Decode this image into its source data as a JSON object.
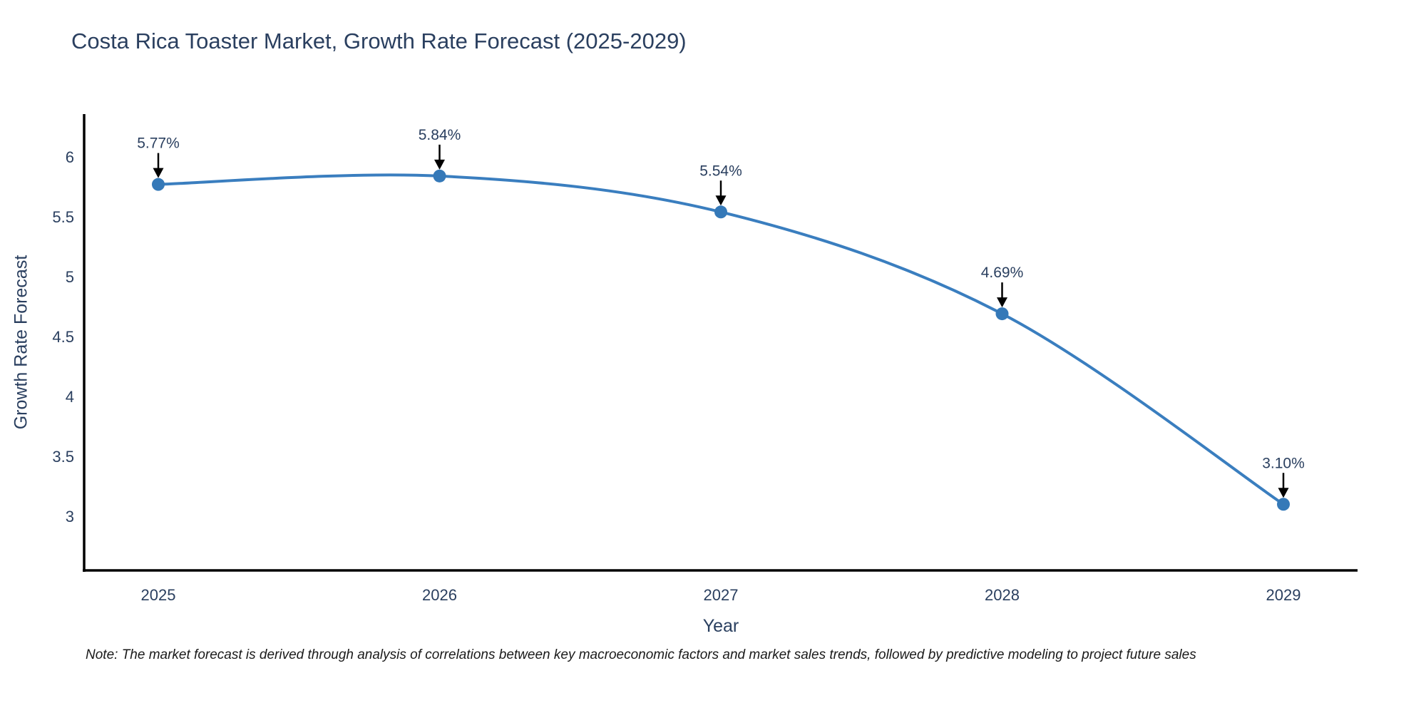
{
  "title": "Costa Rica Toaster Market, Growth Rate Forecast (2025-2029)",
  "chart_data": {
    "type": "line",
    "title": "Costa Rica Toaster Market, Growth Rate Forecast (2025-2029)",
    "x": [
      "2025",
      "2026",
      "2027",
      "2028",
      "2029"
    ],
    "series": [
      {
        "name": "Growth Rate Forecast",
        "values": [
          5.77,
          5.84,
          5.54,
          4.69,
          3.1
        ]
      }
    ],
    "point_labels": [
      "5.77%",
      "5.84%",
      "5.54%",
      "4.69%",
      "3.10%"
    ],
    "xlabel": "Year",
    "ylabel": "Growth Rate Forecast",
    "y_ticks": [
      6,
      5.5,
      5,
      4.5,
      4,
      3.5,
      3
    ],
    "y_tick_labels": [
      "6",
      "5.5",
      "5",
      "4.5",
      "4",
      "3.5",
      "3"
    ],
    "ylim": [
      2.548,
      6.357
    ],
    "line_shape": "spline",
    "grid": false,
    "legend_position": "none",
    "markers": true,
    "annotations_have_arrows": true
  },
  "note": "Note: The market forecast is derived through analysis of correlations between key macroeconomic factors and market sales trends, followed by predictive modeling to project future sales",
  "colors": {
    "line": "#3a7ebf",
    "marker": "#3579b8",
    "text": "#2a3f5f",
    "axis_line": "#000000",
    "arrow": "#000000",
    "note_text": "#1a1a1a",
    "background": "#ffffff"
  }
}
